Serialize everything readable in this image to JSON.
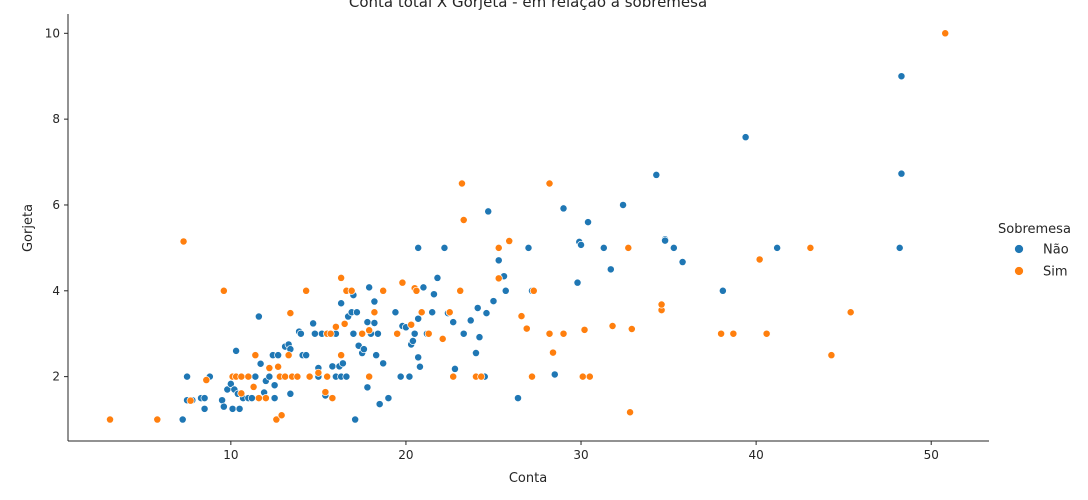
{
  "chart_data": {
    "type": "scatter",
    "title": "Conta total X Gorjeta - em relação a sobremesa",
    "xlabel": "Conta",
    "ylabel": "Gorjeta",
    "xlim": [
      0.7,
      53.3
    ],
    "ylim": [
      0.5,
      10.45
    ],
    "xticks": [
      10,
      20,
      30,
      40,
      50
    ],
    "yticks": [
      2,
      4,
      6,
      8,
      10
    ],
    "grid": false,
    "legend": {
      "title": "Sobremesa",
      "placement": "right"
    },
    "series": [
      {
        "name": "Não",
        "color": "#1f77b4",
        "points": [
          [
            7.25,
            1.0
          ],
          [
            7.5,
            2.0
          ],
          [
            7.5,
            1.45
          ],
          [
            7.8,
            1.45
          ],
          [
            8.3,
            1.5
          ],
          [
            8.5,
            1.25
          ],
          [
            8.5,
            1.5
          ],
          [
            8.8,
            2.0
          ],
          [
            9.5,
            1.45
          ],
          [
            9.6,
            1.3
          ],
          [
            9.8,
            1.7
          ],
          [
            10.0,
            1.83
          ],
          [
            10.1,
            1.25
          ],
          [
            10.2,
            1.7
          ],
          [
            10.3,
            2.6
          ],
          [
            10.4,
            1.6
          ],
          [
            10.5,
            1.25
          ],
          [
            10.7,
            1.5
          ],
          [
            11.0,
            1.5
          ],
          [
            11.2,
            1.5
          ],
          [
            11.4,
            2.0
          ],
          [
            11.6,
            3.4
          ],
          [
            11.7,
            2.3
          ],
          [
            11.9,
            1.63
          ],
          [
            12.0,
            1.9
          ],
          [
            12.2,
            2.0
          ],
          [
            12.4,
            2.5
          ],
          [
            12.5,
            1.5
          ],
          [
            12.5,
            1.8
          ],
          [
            12.7,
            2.5
          ],
          [
            13.0,
            2.0
          ],
          [
            13.1,
            2.7
          ],
          [
            13.3,
            2.75
          ],
          [
            13.4,
            2.64
          ],
          [
            13.4,
            1.6
          ],
          [
            13.5,
            2.0
          ],
          [
            13.8,
            2.0
          ],
          [
            13.9,
            3.05
          ],
          [
            14.0,
            3.0
          ],
          [
            14.1,
            2.5
          ],
          [
            14.3,
            2.5
          ],
          [
            14.5,
            2.0
          ],
          [
            14.7,
            3.24
          ],
          [
            14.8,
            3.0
          ],
          [
            15.0,
            2.2
          ],
          [
            15.0,
            2.0
          ],
          [
            15.2,
            3.0
          ],
          [
            15.4,
            1.56
          ],
          [
            15.5,
            3.0
          ],
          [
            15.8,
            3.0
          ],
          [
            15.8,
            2.24
          ],
          [
            16.0,
            3.0
          ],
          [
            16.0,
            2.0
          ],
          [
            16.2,
            2.24
          ],
          [
            16.3,
            3.71
          ],
          [
            16.3,
            2.0
          ],
          [
            16.4,
            2.31
          ],
          [
            16.6,
            2.0
          ],
          [
            16.7,
            3.4
          ],
          [
            16.9,
            3.5
          ],
          [
            17.0,
            3.0
          ],
          [
            17.1,
            1.0
          ],
          [
            17.2,
            3.5
          ],
          [
            17.3,
            2.72
          ],
          [
            17.5,
            2.55
          ],
          [
            17.6,
            2.64
          ],
          [
            17.8,
            3.27
          ],
          [
            17.8,
            1.75
          ],
          [
            17.9,
            4.08
          ],
          [
            18.0,
            3.0
          ],
          [
            18.2,
            3.25
          ],
          [
            18.2,
            3.75
          ],
          [
            18.3,
            2.5
          ],
          [
            18.4,
            3.0
          ],
          [
            18.5,
            1.36
          ],
          [
            18.7,
            2.31
          ],
          [
            19.0,
            1.5
          ],
          [
            19.4,
            3.5
          ],
          [
            19.5,
            3.0
          ],
          [
            19.7,
            2.0
          ],
          [
            19.8,
            3.18
          ],
          [
            20.0,
            3.15
          ],
          [
            20.2,
            2.0
          ],
          [
            20.3,
            2.75
          ],
          [
            20.4,
            2.83
          ],
          [
            20.5,
            3.0
          ],
          [
            20.7,
            3.35
          ],
          [
            20.7,
            2.45
          ],
          [
            20.8,
            2.23
          ],
          [
            21.0,
            4.08
          ],
          [
            21.2,
            3.0
          ],
          [
            21.5,
            3.5
          ],
          [
            21.6,
            3.92
          ],
          [
            21.8,
            4.3
          ],
          [
            22.2,
            5.0
          ],
          [
            22.4,
            3.48
          ],
          [
            22.7,
            3.27
          ],
          [
            22.8,
            2.18
          ],
          [
            23.3,
            3.0
          ],
          [
            23.7,
            3.31
          ],
          [
            24.0,
            2.55
          ],
          [
            24.1,
            3.6
          ],
          [
            24.2,
            2.92
          ],
          [
            24.5,
            2.0
          ],
          [
            24.6,
            3.48
          ],
          [
            24.7,
            5.85
          ],
          [
            25.0,
            3.76
          ],
          [
            25.3,
            4.71
          ],
          [
            25.6,
            4.34
          ],
          [
            25.7,
            4.0
          ],
          [
            26.4,
            1.5
          ],
          [
            27.0,
            5.0
          ],
          [
            27.2,
            4.0
          ],
          [
            28.5,
            2.05
          ],
          [
            29.0,
            5.92
          ],
          [
            29.8,
            4.19
          ],
          [
            29.9,
            5.14
          ],
          [
            30.0,
            5.07
          ],
          [
            30.4,
            5.6
          ],
          [
            31.3,
            5.0
          ],
          [
            31.7,
            4.5
          ],
          [
            32.4,
            6.0
          ],
          [
            32.7,
            5.0
          ],
          [
            34.3,
            6.7
          ],
          [
            34.8,
            5.2
          ],
          [
            34.8,
            5.17
          ],
          [
            35.3,
            5.0
          ],
          [
            35.8,
            4.67
          ],
          [
            38.1,
            4.0
          ],
          [
            39.4,
            7.58
          ],
          [
            41.2,
            5.0
          ],
          [
            48.2,
            5.0
          ],
          [
            48.3,
            6.73
          ],
          [
            48.3,
            9.0
          ],
          [
            20.7,
            5.0
          ],
          [
            17.0,
            3.9
          ]
        ]
      },
      {
        "name": "Sim",
        "color": "#ff7f0e",
        "points": [
          [
            3.1,
            1.0
          ],
          [
            5.8,
            1.0
          ],
          [
            7.3,
            5.15
          ],
          [
            7.7,
            1.44
          ],
          [
            8.6,
            1.92
          ],
          [
            9.6,
            4.0
          ],
          [
            10.1,
            2.0
          ],
          [
            10.3,
            2.0
          ],
          [
            10.6,
            1.61
          ],
          [
            10.6,
            2.0
          ],
          [
            11.0,
            2.0
          ],
          [
            11.3,
            1.76
          ],
          [
            11.4,
            2.5
          ],
          [
            11.6,
            1.5
          ],
          [
            12.0,
            1.5
          ],
          [
            12.2,
            2.2
          ],
          [
            12.6,
            1.0
          ],
          [
            12.7,
            2.23
          ],
          [
            12.8,
            2.0
          ],
          [
            12.9,
            1.1
          ],
          [
            13.1,
            2.0
          ],
          [
            13.3,
            2.5
          ],
          [
            13.4,
            3.48
          ],
          [
            13.5,
            2.0
          ],
          [
            13.8,
            2.0
          ],
          [
            14.3,
            4.0
          ],
          [
            14.5,
            2.0
          ],
          [
            15.0,
            2.09
          ],
          [
            15.4,
            1.64
          ],
          [
            15.5,
            3.0
          ],
          [
            15.5,
            2.0
          ],
          [
            15.7,
            3.0
          ],
          [
            15.8,
            1.5
          ],
          [
            16.0,
            3.16
          ],
          [
            16.3,
            2.5
          ],
          [
            16.3,
            4.3
          ],
          [
            16.5,
            3.23
          ],
          [
            16.6,
            4.0
          ],
          [
            16.9,
            4.0
          ],
          [
            17.5,
            3.0
          ],
          [
            17.9,
            2.0
          ],
          [
            17.9,
            3.08
          ],
          [
            18.2,
            3.5
          ],
          [
            18.7,
            4.0
          ],
          [
            19.5,
            3.0
          ],
          [
            19.8,
            4.19
          ],
          [
            20.3,
            3.21
          ],
          [
            20.5,
            4.06
          ],
          [
            20.6,
            4.0
          ],
          [
            20.9,
            3.5
          ],
          [
            21.3,
            3.0
          ],
          [
            22.1,
            2.88
          ],
          [
            22.5,
            3.5
          ],
          [
            22.7,
            2.0
          ],
          [
            23.1,
            4.0
          ],
          [
            23.2,
            6.5
          ],
          [
            23.3,
            5.65
          ],
          [
            24.0,
            2.0
          ],
          [
            24.3,
            2.0
          ],
          [
            25.3,
            4.29
          ],
          [
            25.3,
            5.0
          ],
          [
            25.9,
            5.16
          ],
          [
            26.6,
            3.41
          ],
          [
            26.9,
            3.12
          ],
          [
            27.2,
            2.0
          ],
          [
            27.3,
            4.0
          ],
          [
            28.2,
            6.5
          ],
          [
            28.2,
            3.0
          ],
          [
            28.4,
            2.56
          ],
          [
            29.0,
            3.0
          ],
          [
            30.1,
            2.0
          ],
          [
            30.2,
            3.09
          ],
          [
            30.5,
            2.0
          ],
          [
            31.8,
            3.18
          ],
          [
            32.7,
            5.0
          ],
          [
            32.8,
            1.17
          ],
          [
            32.9,
            3.11
          ],
          [
            34.6,
            3.55
          ],
          [
            34.6,
            3.68
          ],
          [
            38.0,
            3.0
          ],
          [
            38.7,
            3.0
          ],
          [
            40.2,
            4.73
          ],
          [
            40.6,
            3.0
          ],
          [
            43.1,
            5.0
          ],
          [
            44.3,
            2.5
          ],
          [
            45.4,
            3.5
          ],
          [
            50.8,
            10.0
          ]
        ]
      }
    ]
  }
}
